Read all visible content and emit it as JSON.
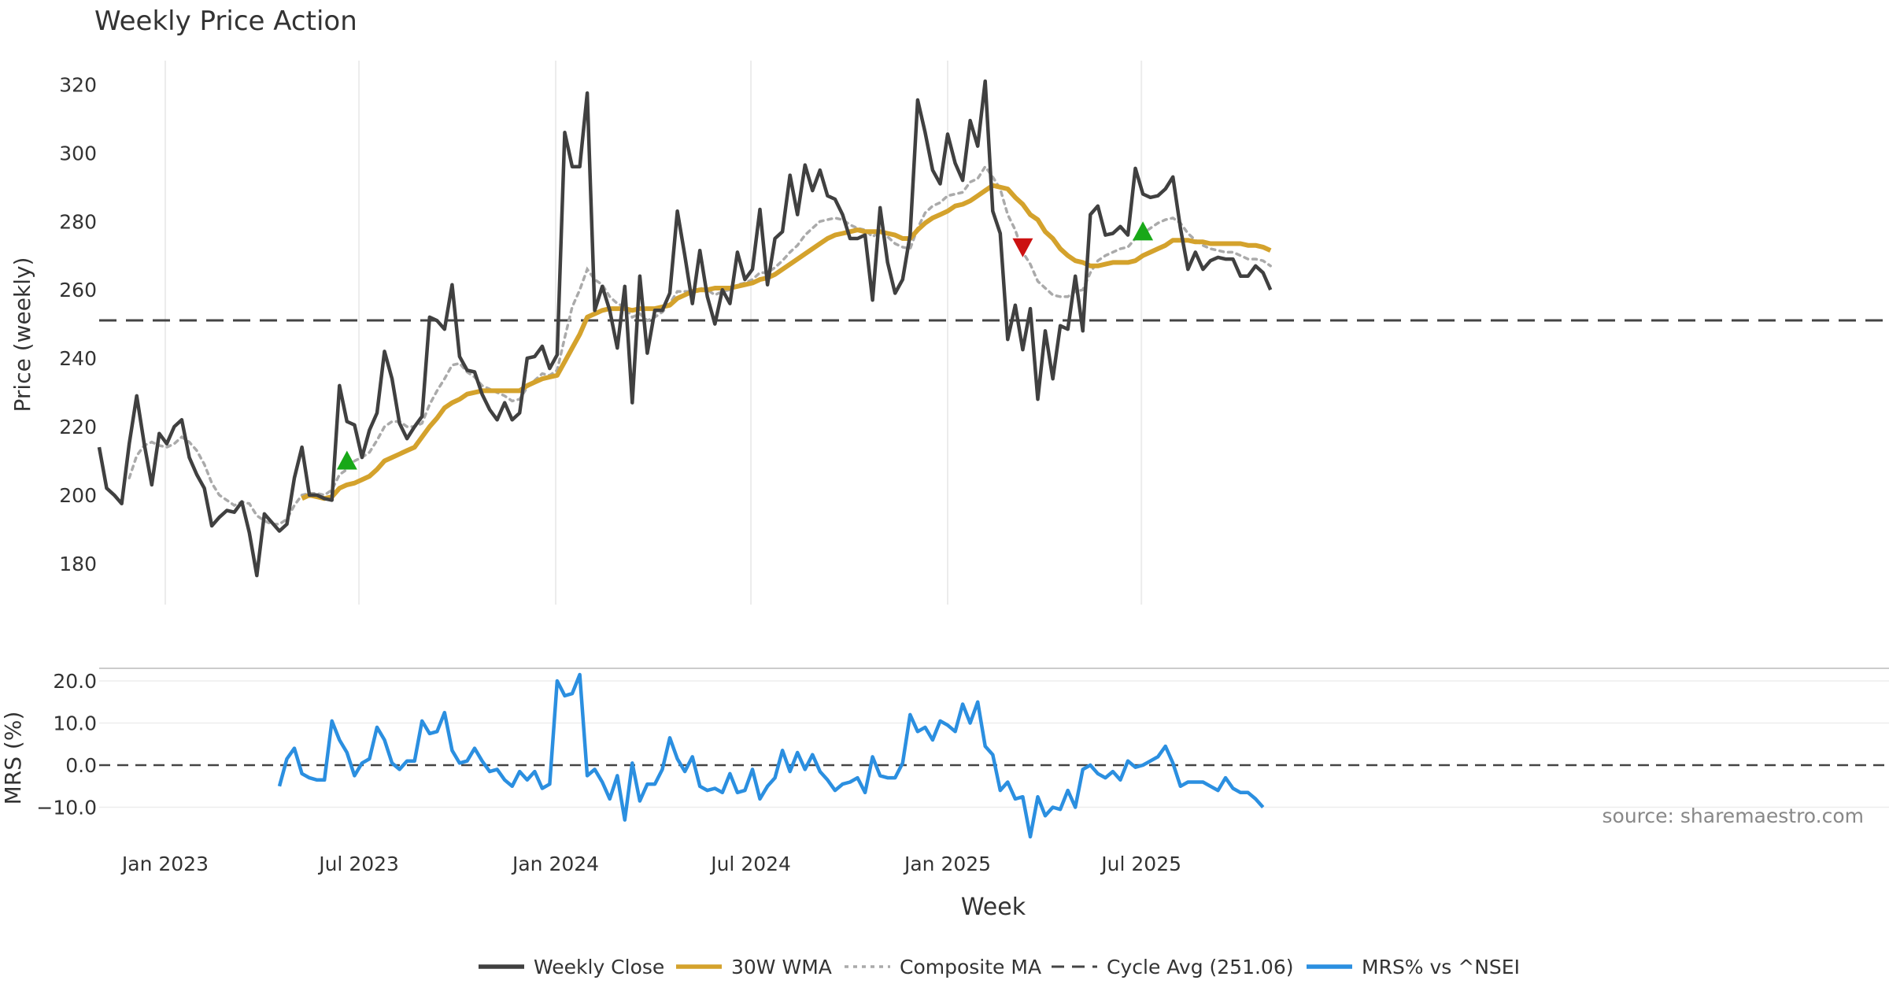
{
  "chart_data": {
    "type": "line",
    "title": "Weekly Price Action",
    "xlabel": "Week",
    "source": "source: sharemaestro.com",
    "x_ticks": [
      "Jan 2023",
      "Jul 2023",
      "Jan 2024",
      "Jul 2024",
      "Jan 2025",
      "Jul 2025"
    ],
    "colors": {
      "close": "#404040",
      "wma": "#d4a22c",
      "composite": "#aaaaaa",
      "cycle": "#444444",
      "mrs": "#2b8fe0",
      "up_marker": "#18a818",
      "down_marker": "#cc1111"
    },
    "price_panel": {
      "ylabel": "Price (weekly)",
      "ylim": [
        168,
        327
      ],
      "yticks": [
        "180",
        "200",
        "220",
        "240",
        "260",
        "280",
        "300",
        "320"
      ],
      "cycle_avg": 251.06,
      "weekly_close": [
        214.0,
        202.0,
        200.0,
        197.5,
        215.0,
        229.0,
        215.0,
        203.0,
        218.0,
        215.0,
        220.0,
        222.0,
        211.0,
        206.0,
        202.0,
        191.0,
        193.5,
        195.5,
        195.0,
        198.0,
        189.0,
        176.5,
        194.5,
        192.0,
        189.5,
        191.5,
        205.0,
        214.0,
        200.0,
        200.0,
        199.0,
        198.5,
        232.0,
        221.5,
        220.5,
        211.0,
        219.0,
        224.0,
        242.0,
        234.0,
        221.0,
        216.5,
        220.0,
        223.0,
        252.0,
        251.0,
        248.5,
        261.5,
        240.5,
        236.5,
        236.0,
        229.5,
        225.0,
        222.0,
        227.0,
        222.0,
        224.0,
        240.0,
        240.5,
        243.5,
        237.0,
        241.0,
        306.0,
        296.0,
        296.0,
        317.5,
        254.0,
        261.0,
        254.0,
        243.0,
        261.0,
        227.0,
        264.0,
        241.5,
        254.0,
        254.0,
        259.0,
        283.0,
        270.0,
        256.0,
        271.5,
        258.0,
        250.0,
        260.0,
        256.0,
        271.0,
        263.0,
        266.0,
        283.5,
        261.5,
        275.0,
        277.0,
        293.5,
        282.0,
        296.5,
        289.0,
        295.0,
        287.5,
        286.5,
        282.0,
        275.0,
        275.0,
        276.0,
        257.0,
        284.0,
        268.0,
        259.0,
        263.0,
        276.0,
        315.5,
        306.0,
        295.0,
        291.0,
        305.5,
        297.0,
        292.0,
        309.5,
        302.0,
        321.0,
        283.0,
        276.5,
        245.5,
        255.5,
        242.5,
        254.5,
        228.0,
        248.0,
        234.0,
        249.5,
        248.5,
        264.0,
        248.0,
        282.0,
        284.5,
        276.0,
        276.5,
        278.5,
        276.0,
        295.5,
        288.0,
        287.0,
        287.5,
        289.5,
        293.0,
        278.0,
        266.0,
        271.0,
        266.0,
        268.5,
        269.5,
        269.0,
        269.0,
        264.0,
        264.0,
        267.0,
        265.0,
        260.0
      ],
      "wma_30w": [
        null,
        null,
        null,
        null,
        null,
        null,
        null,
        null,
        null,
        null,
        null,
        null,
        null,
        null,
        null,
        null,
        null,
        null,
        null,
        null,
        null,
        null,
        null,
        null,
        null,
        null,
        null,
        199.0,
        200.0,
        199.5,
        199.0,
        199.5,
        202.0,
        203.0,
        203.5,
        204.5,
        205.5,
        207.5,
        210.0,
        211.0,
        212.0,
        213.0,
        214.0,
        217.0,
        220.0,
        222.5,
        225.5,
        227.0,
        228.0,
        229.5,
        230.0,
        230.5,
        230.5,
        230.5,
        230.5,
        230.5,
        230.5,
        232.0,
        233.0,
        234.0,
        234.5,
        235.0,
        239.0,
        243.0,
        247.0,
        252.0,
        253.0,
        254.0,
        254.5,
        254.5,
        254.5,
        254.0,
        254.5,
        254.5,
        254.5,
        255.0,
        255.5,
        257.5,
        258.5,
        259.5,
        260.0,
        260.0,
        260.5,
        260.5,
        260.5,
        261.0,
        261.5,
        262.0,
        263.0,
        263.5,
        264.5,
        266.0,
        267.5,
        269.0,
        270.5,
        272.0,
        273.5,
        275.0,
        276.0,
        276.5,
        277.0,
        277.5,
        277.0,
        277.0,
        277.0,
        276.5,
        276.0,
        275.0,
        275.0,
        277.5,
        279.5,
        281.0,
        282.0,
        283.0,
        284.5,
        285.0,
        286.0,
        287.5,
        289.0,
        290.5,
        290.0,
        289.5,
        287.0,
        285.0,
        282.0,
        280.5,
        277.0,
        275.0,
        272.0,
        270.0,
        268.5,
        268.0,
        267.0,
        267.0,
        267.5,
        268.0,
        268.0,
        268.0,
        268.5,
        270.0,
        271.0,
        272.0,
        273.0,
        274.5,
        274.5,
        274.5,
        274.0,
        274.0,
        273.5,
        273.5,
        273.5,
        273.5,
        273.5,
        273.0,
        273.0,
        272.5,
        271.5
      ],
      "composite_ma": [
        null,
        null,
        null,
        null,
        205.0,
        211.5,
        214.5,
        215.5,
        214.5,
        214.0,
        215.0,
        217.0,
        215.5,
        213.0,
        209.0,
        203.5,
        200.0,
        198.5,
        197.0,
        198.0,
        197.5,
        194.0,
        192.5,
        191.5,
        191.5,
        193.0,
        197.0,
        200.0,
        200.5,
        200.5,
        200.0,
        201.5,
        206.0,
        207.5,
        210.0,
        211.0,
        212.5,
        216.0,
        220.0,
        221.5,
        221.5,
        220.0,
        220.0,
        221.0,
        226.5,
        230.5,
        234.0,
        238.0,
        238.5,
        236.0,
        234.5,
        232.0,
        231.0,
        230.0,
        229.0,
        227.5,
        228.0,
        231.5,
        233.5,
        235.5,
        235.0,
        236.5,
        246.0,
        255.0,
        260.0,
        266.0,
        263.0,
        261.5,
        258.0,
        256.0,
        255.0,
        252.0,
        253.0,
        251.0,
        252.0,
        253.5,
        256.0,
        259.5,
        259.5,
        259.5,
        260.5,
        260.0,
        258.5,
        259.5,
        260.0,
        261.5,
        262.0,
        263.0,
        265.0,
        265.0,
        266.5,
        268.5,
        271.0,
        273.0,
        276.0,
        278.0,
        280.0,
        280.5,
        281.0,
        280.5,
        279.0,
        278.0,
        277.5,
        275.5,
        277.0,
        275.5,
        273.5,
        272.5,
        272.0,
        278.0,
        282.5,
        284.5,
        285.5,
        287.5,
        288.0,
        288.5,
        291.5,
        292.5,
        296.0,
        293.0,
        289.5,
        282.0,
        277.5,
        271.0,
        267.5,
        262.5,
        260.5,
        258.5,
        258.0,
        258.0,
        259.5,
        260.0,
        265.0,
        268.5,
        270.0,
        271.0,
        272.0,
        272.5,
        275.0,
        276.5,
        278.0,
        279.5,
        280.5,
        281.0,
        279.5,
        276.5,
        274.5,
        273.0,
        272.0,
        271.5,
        271.0,
        271.0,
        270.0,
        269.0,
        269.0,
        268.5,
        267.0
      ],
      "markers": [
        {
          "type": "buy",
          "week": 33,
          "price": 210.0
        },
        {
          "type": "sell",
          "week": 123,
          "price": 272.5
        },
        {
          "type": "buy",
          "week": 139,
          "price": 277.0
        }
      ]
    },
    "mrs_panel": {
      "ylabel": "MRS (%)",
      "ylim": [
        -17,
        23
      ],
      "yticks": [
        "20.0",
        "10.0",
        "0.0",
        "−10.0"
      ],
      "mrs": [
        null,
        null,
        null,
        null,
        null,
        null,
        null,
        null,
        null,
        null,
        null,
        null,
        null,
        null,
        null,
        null,
        null,
        null,
        null,
        null,
        null,
        null,
        null,
        null,
        -5.0,
        1.5,
        4.0,
        -2.0,
        -3.0,
        -3.5,
        -3.5,
        10.5,
        6.0,
        3.0,
        -2.5,
        0.5,
        1.5,
        9.0,
        6.0,
        0.5,
        -1.0,
        1.0,
        1.0,
        10.5,
        7.5,
        8.0,
        12.5,
        3.5,
        0.5,
        1.0,
        4.0,
        1.0,
        -1.5,
        -1.0,
        -3.5,
        -5.0,
        -1.5,
        -3.5,
        -1.5,
        -5.5,
        -4.5,
        20.0,
        16.5,
        17.0,
        21.5,
        -2.5,
        -1.0,
        -4.0,
        -8.0,
        -2.5,
        -13.0,
        0.5,
        -8.5,
        -4.5,
        -4.5,
        -1.0,
        6.5,
        1.5,
        -1.5,
        2.0,
        -5.0,
        -6.0,
        -5.5,
        -6.5,
        -2.0,
        -6.5,
        -6.0,
        -1.0,
        -8.0,
        -5.0,
        -3.0,
        3.5,
        -1.5,
        3.0,
        -1.0,
        2.5,
        -1.5,
        -3.5,
        -6.0,
        -4.5,
        -4.0,
        -3.0,
        -6.5,
        2.0,
        -2.5,
        -3.0,
        -3.0,
        0.5,
        12.0,
        8.0,
        9.0,
        6.0,
        10.5,
        9.5,
        8.0,
        14.5,
        10.0,
        15.0,
        4.5,
        2.5,
        -6.0,
        -4.0,
        -8.0,
        -7.5,
        -17.0,
        -7.5,
        -12.0,
        -10.0,
        -10.5,
        -6.0,
        -10.0,
        -1.0,
        0.0,
        -2.0,
        -3.0,
        -1.5,
        -3.5,
        1.0,
        -0.5,
        0.0,
        1.0,
        2.0,
        4.5,
        0.5,
        -5.0,
        -4.0,
        -4.0,
        -4.0,
        -5.0,
        -6.0,
        -3.0,
        -5.5,
        -6.5,
        -6.5,
        -8.0,
        -10.0
      ]
    },
    "legend": [
      {
        "key": "close",
        "label": "Weekly Close"
      },
      {
        "key": "wma",
        "label": "30W WMA"
      },
      {
        "key": "composite",
        "label": "Composite MA"
      },
      {
        "key": "cycle",
        "label": "Cycle Avg (251.06)"
      },
      {
        "key": "mrs",
        "label": "MRS% vs ^NSEI"
      }
    ]
  }
}
